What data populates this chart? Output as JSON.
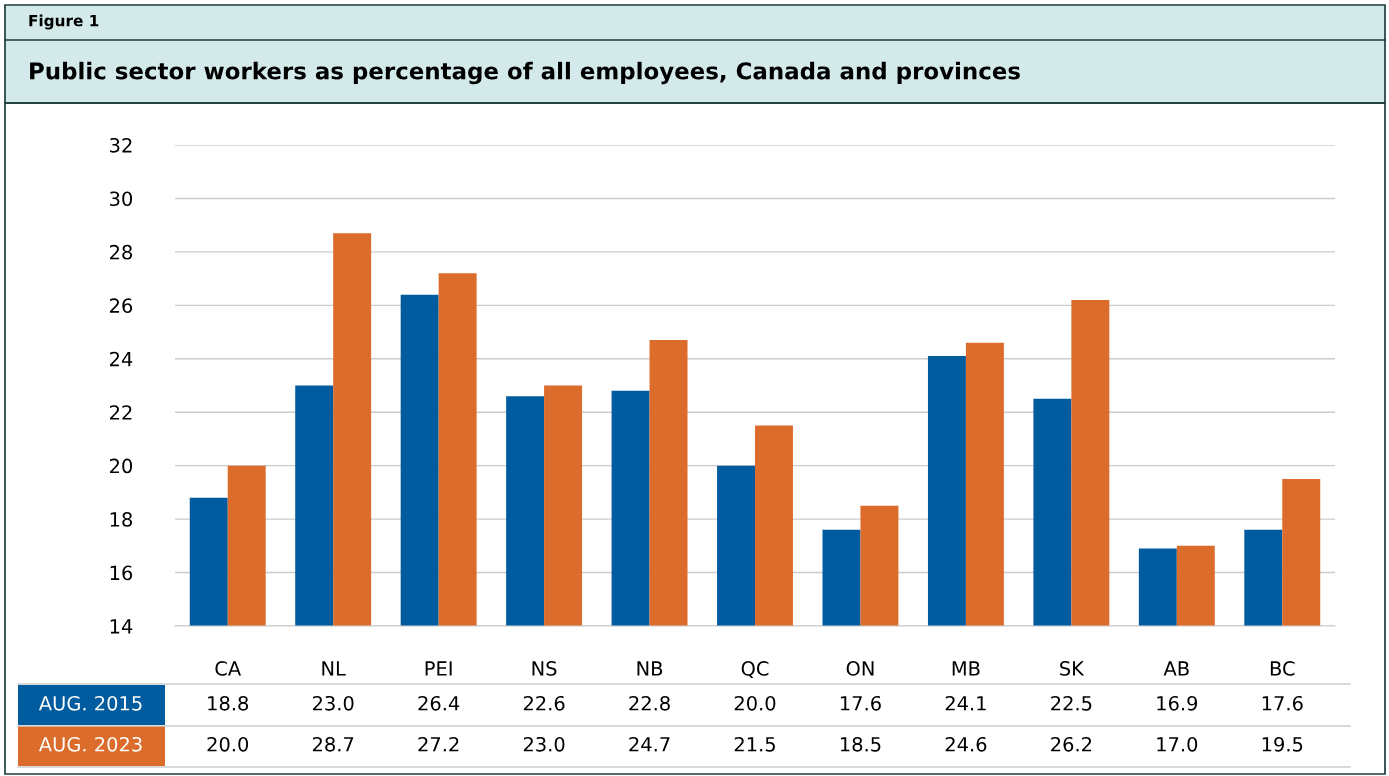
{
  "chart_data": {
    "type": "bar",
    "title": "Public sector workers as percentage of all employees, Canada and provinces",
    "annotations": [
      "Figure 1"
    ],
    "categories": [
      "CA",
      "NL",
      "PEI",
      "NS",
      "NB",
      "QC",
      "ON",
      "MB",
      "SK",
      "AB",
      "BC"
    ],
    "series": [
      {
        "name": "AUG. 2015",
        "color": "#005c9e",
        "values": [
          18.8,
          23.0,
          26.4,
          22.6,
          22.8,
          20.0,
          17.6,
          24.1,
          22.5,
          16.9,
          17.6
        ],
        "value_labels": [
          "18.8",
          "23.0",
          "26.4",
          "22.6",
          "22.8",
          "20.0",
          "17.6",
          "24.1",
          "22.5",
          "16.9",
          "17.6"
        ]
      },
      {
        "name": "AUG. 2023",
        "color": "#db6c2c",
        "values": [
          20.0,
          28.7,
          27.2,
          23.0,
          24.7,
          21.5,
          18.5,
          24.6,
          26.2,
          17.0,
          19.5
        ],
        "value_labels": [
          "20.0",
          "28.7",
          "27.2",
          "23.0",
          "24.7",
          "21.5",
          "18.5",
          "24.6",
          "26.2",
          "17.0",
          "19.5"
        ]
      }
    ],
    "ylim": [
      14,
      32
    ],
    "yticks": [
      14,
      16,
      18,
      20,
      22,
      24,
      26,
      28,
      30,
      32
    ],
    "grid": "y"
  }
}
